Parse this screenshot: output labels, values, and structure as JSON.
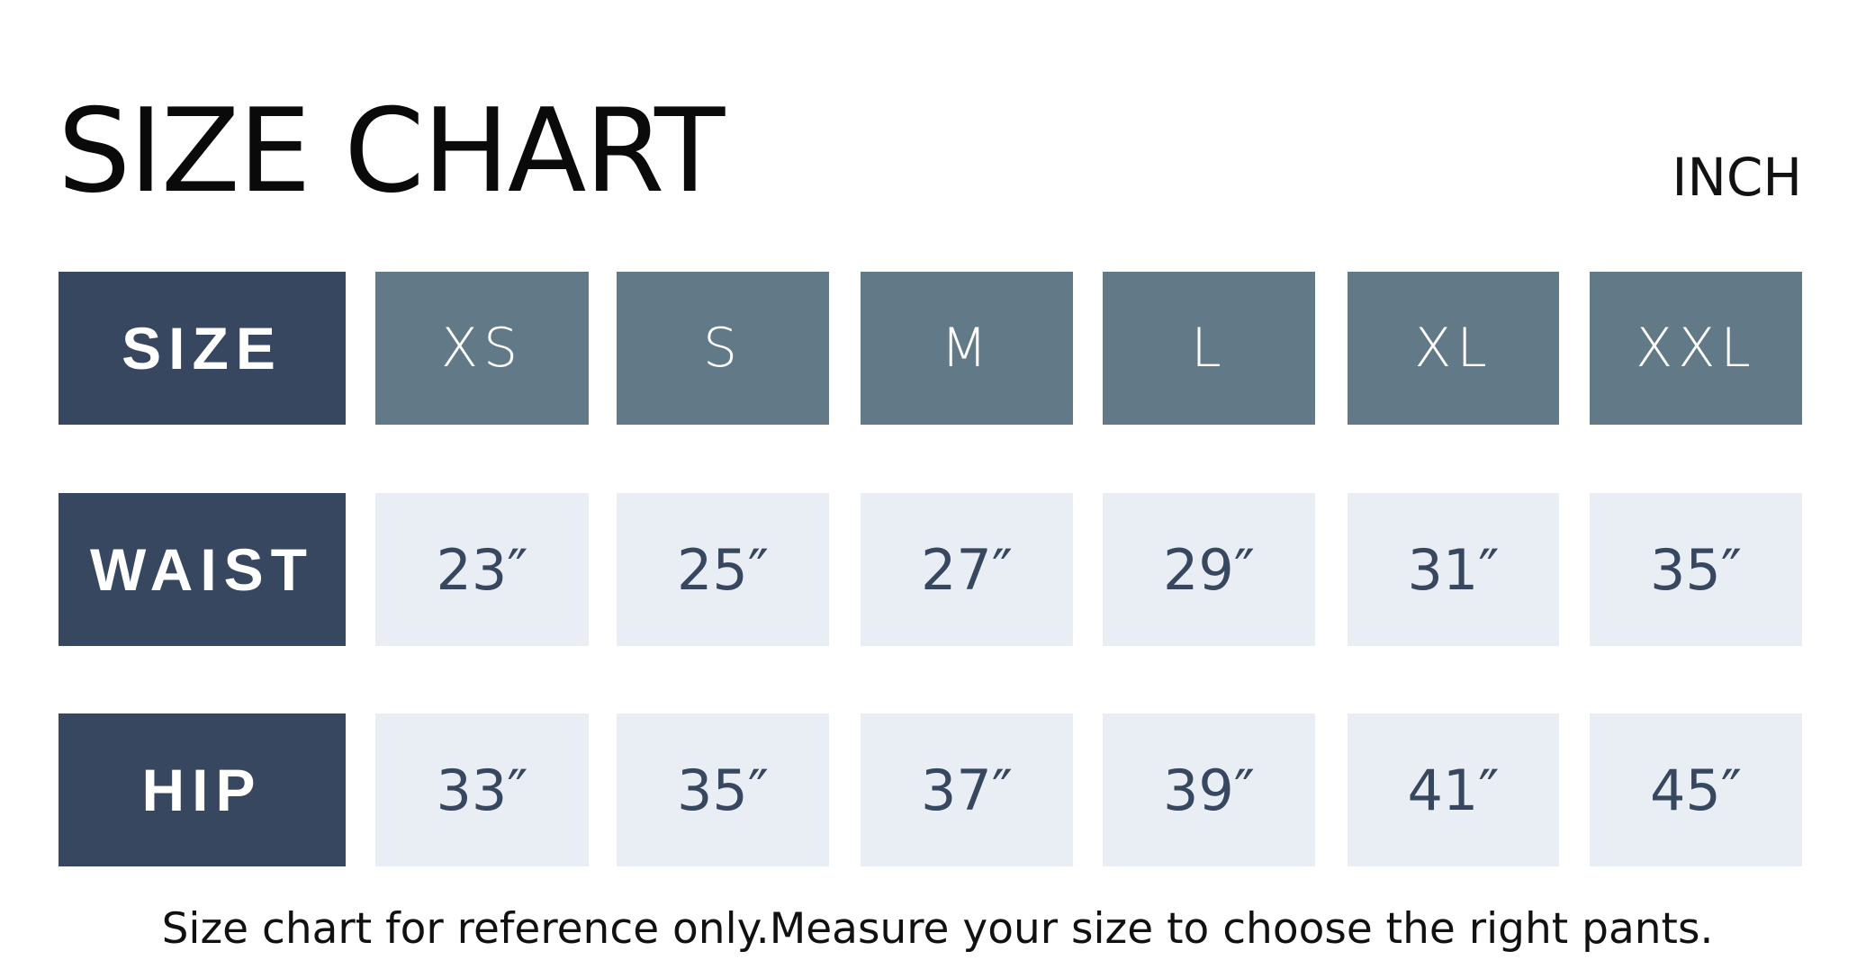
{
  "title": "SIZE CHART",
  "unit": "INCH",
  "colors": {
    "label_bg": "#37475f",
    "header_bg": "#627a87",
    "value_bg": "#e8eef3",
    "value_text": "#37475f"
  },
  "table": {
    "columns": [
      "XS",
      "S",
      "M",
      "L",
      "XL",
      "XXL"
    ],
    "rows": [
      {
        "label": "SIZE",
        "values": [
          "XS",
          "S",
          "M",
          "L",
          "XL",
          "XXL"
        ]
      },
      {
        "label": "WAIST",
        "values": [
          "23″",
          "25″",
          "27″",
          "29″",
          "31″",
          "35″"
        ]
      },
      {
        "label": "HIP",
        "values": [
          "33″",
          "35″",
          "37″",
          "39″",
          "41″",
          "45″"
        ]
      }
    ]
  },
  "note": "Size chart for reference only.Measure your size to choose the right pants."
}
